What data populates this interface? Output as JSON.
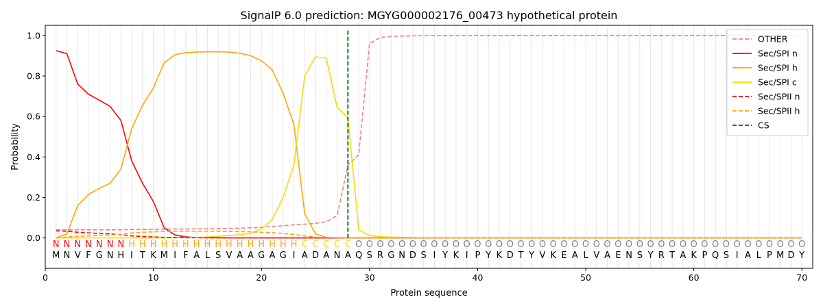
{
  "chart_data": {
    "type": "line",
    "title": "SignalP 6.0 prediction: MGYG000002176_00473 hypothetical protein",
    "xlabel": "Protein sequence",
    "ylabel": "Probability",
    "xlim": [
      0,
      71
    ],
    "ylim": [
      -0.15,
      1.05
    ],
    "xticks": [
      0,
      10,
      20,
      30,
      40,
      50,
      60,
      70
    ],
    "yticks": [
      0.0,
      0.2,
      0.4,
      0.6,
      0.8,
      1.0
    ],
    "ytick_labels": [
      "0.0",
      "0.2",
      "0.4",
      "0.6",
      "0.8",
      "1.0"
    ],
    "vertical_grid": true,
    "legend_position": "top-right",
    "sequence": [
      "M",
      "N",
      "V",
      "F",
      "G",
      "N",
      "H",
      "I",
      "T",
      "K",
      "M",
      "I",
      "F",
      "A",
      "L",
      "S",
      "V",
      "A",
      "A",
      "G",
      "A",
      "G",
      "I",
      "A",
      "D",
      "A",
      "N",
      "A",
      "Q",
      "S",
      "R",
      "G",
      "N",
      "D",
      "S",
      "I",
      "Y",
      "K",
      "I",
      "P",
      "Y",
      "K",
      "D",
      "T",
      "Y",
      "V",
      "K",
      "E",
      "A",
      "L",
      "V",
      "A",
      "E",
      "N",
      "S",
      "Y",
      "R",
      "T",
      "A",
      "K",
      "P",
      "Q",
      "S",
      "I",
      "A",
      "L",
      "P",
      "M",
      "D",
      "Y"
    ],
    "labels": [
      "N",
      "N",
      "N",
      "N",
      "N",
      "N",
      "N",
      "H",
      "H",
      "H",
      "H",
      "H",
      "H",
      "H",
      "H",
      "H",
      "H",
      "H",
      "H",
      "H",
      "H",
      "H",
      "H",
      "C",
      "C",
      "C",
      "C",
      "C",
      "O",
      "O",
      "O",
      "O",
      "O",
      "O",
      "O",
      "O",
      "O",
      "O",
      "O",
      "O",
      "O",
      "O",
      "O",
      "O",
      "O",
      "O",
      "O",
      "O",
      "O",
      "O",
      "O",
      "O",
      "O",
      "O",
      "O",
      "O",
      "O",
      "O",
      "O",
      "O",
      "O",
      "O",
      "O",
      "O",
      "O",
      "O",
      "O",
      "O",
      "O",
      "O"
    ],
    "label_colors": {
      "N": "#ff0000",
      "H": "#ffa500",
      "C": "#ffd700",
      "O": "#808080"
    },
    "series": [
      {
        "name": "OTHER",
        "color": "#f08080",
        "dash": "dashed",
        "values": [
          0.04,
          0.04,
          0.04,
          0.04,
          0.04,
          0.04,
          0.04,
          0.042,
          0.042,
          0.043,
          0.043,
          0.044,
          0.044,
          0.045,
          0.045,
          0.046,
          0.047,
          0.048,
          0.05,
          0.052,
          0.057,
          0.06,
          0.065,
          0.068,
          0.072,
          0.08,
          0.11,
          0.36,
          0.41,
          0.96,
          0.99,
          0.995,
          0.997,
          0.998,
          0.999,
          0.999,
          1.0,
          1.0,
          1.0,
          1.0,
          1.0,
          1.0,
          1.0,
          1.0,
          1.0,
          1.0,
          1.0,
          1.0,
          1.0,
          1.0,
          1.0,
          1.0,
          1.0,
          1.0,
          1.0,
          1.0,
          1.0,
          1.0,
          1.0,
          1.0,
          1.0,
          1.0,
          1.0,
          1.0,
          1.0,
          1.0,
          1.0,
          1.0,
          1.0,
          1.0
        ]
      },
      {
        "name": "Sec/SPI n",
        "color": "#ff0000",
        "dash": "solid",
        "values": [
          0.925,
          0.91,
          0.76,
          0.71,
          0.68,
          0.65,
          0.58,
          0.38,
          0.27,
          0.18,
          0.05,
          0.015,
          0.005,
          0.002,
          0.001,
          0.001,
          0,
          0,
          0,
          0,
          0,
          0,
          0,
          0,
          0,
          0,
          0,
          0,
          0,
          0,
          0,
          0,
          0,
          0,
          0,
          0,
          0,
          0,
          0,
          0,
          0,
          0,
          0,
          0,
          0,
          0,
          0,
          0,
          0,
          0,
          0,
          0,
          0,
          0,
          0,
          0,
          0,
          0,
          0,
          0,
          0,
          0,
          0,
          0,
          0,
          0,
          0,
          0,
          0,
          0
        ]
      },
      {
        "name": "Sec/SPI h",
        "color": "#ffa500",
        "dash": "solid",
        "values": [
          0.0,
          0.02,
          0.16,
          0.215,
          0.245,
          0.27,
          0.34,
          0.54,
          0.655,
          0.74,
          0.865,
          0.905,
          0.915,
          0.918,
          0.919,
          0.919,
          0.918,
          0.912,
          0.9,
          0.875,
          0.83,
          0.715,
          0.56,
          0.12,
          0.02,
          0.003,
          0.001,
          0,
          0,
          0,
          0,
          0,
          0,
          0,
          0,
          0,
          0,
          0,
          0,
          0,
          0,
          0,
          0,
          0,
          0,
          0,
          0,
          0,
          0,
          0,
          0,
          0,
          0,
          0,
          0,
          0,
          0,
          0,
          0,
          0,
          0,
          0,
          0,
          0,
          0,
          0,
          0,
          0,
          0,
          0
        ]
      },
      {
        "name": "Sec/SPI c",
        "color": "#ffd700",
        "dash": "solid",
        "values": [
          0,
          0.0,
          0.0,
          0.0,
          0.0,
          0.0,
          0.0,
          0.0,
          0.0,
          0.0,
          0.0,
          0.001,
          0.002,
          0.003,
          0.005,
          0.008,
          0.012,
          0.016,
          0.022,
          0.045,
          0.09,
          0.2,
          0.36,
          0.8,
          0.895,
          0.888,
          0.645,
          0.595,
          0.04,
          0.012,
          0.006,
          0.004,
          0.003,
          0.002,
          0.001,
          0.001,
          0,
          0,
          0,
          0,
          0,
          0,
          0,
          0,
          0,
          0,
          0,
          0,
          0,
          0,
          0,
          0,
          0,
          0,
          0,
          0,
          0,
          0,
          0,
          0,
          0,
          0,
          0,
          0,
          0,
          0,
          0,
          0,
          0,
          0
        ]
      },
      {
        "name": "Sec/SPII n",
        "color": "#ff0000",
        "dash": "dashed",
        "values": [
          0.035,
          0.033,
          0.028,
          0.025,
          0.022,
          0.02,
          0.016,
          0.01,
          0.007,
          0.005,
          0.003,
          0.002,
          0.001,
          0.001,
          0,
          0,
          0,
          0,
          0,
          0,
          0,
          0,
          0,
          0,
          0,
          0,
          0,
          0,
          0,
          0,
          0,
          0,
          0,
          0,
          0,
          0,
          0,
          0,
          0,
          0,
          0,
          0,
          0,
          0,
          0,
          0,
          0,
          0,
          0,
          0,
          0,
          0,
          0,
          0,
          0,
          0,
          0,
          0,
          0,
          0,
          0,
          0,
          0,
          0,
          0,
          0,
          0,
          0,
          0,
          0
        ]
      },
      {
        "name": "Sec/SPII h",
        "color": "#ffa500",
        "dash": "dashed",
        "values": [
          0.0,
          0.005,
          0.008,
          0.01,
          0.012,
          0.014,
          0.018,
          0.025,
          0.028,
          0.03,
          0.032,
          0.033,
          0.033,
          0.033,
          0.033,
          0.033,
          0.032,
          0.031,
          0.03,
          0.028,
          0.026,
          0.022,
          0.017,
          0.01,
          0.004,
          0.002,
          0.001,
          0,
          0,
          0,
          0,
          0,
          0,
          0,
          0,
          0,
          0,
          0,
          0,
          0,
          0,
          0,
          0,
          0,
          0,
          0,
          0,
          0,
          0,
          0,
          0,
          0,
          0,
          0,
          0,
          0,
          0,
          0,
          0,
          0,
          0,
          0,
          0,
          0,
          0,
          0,
          0,
          0,
          0,
          0
        ]
      },
      {
        "name": "CS",
        "color": "#006400",
        "dash": "dashed",
        "vline_x": 28,
        "vline_y": [
          0,
          1.03
        ]
      }
    ]
  }
}
